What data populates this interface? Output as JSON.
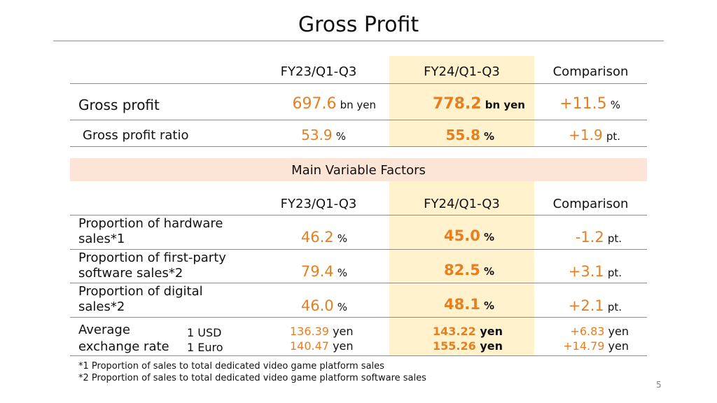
{
  "title": "Gross Profit",
  "top_table": {
    "headers": [
      "FY23/Q1-Q3",
      "FY24/Q1-Q3",
      "Comparison"
    ],
    "rows": [
      {
        "label": "Gross profit",
        "fy23": "697.6",
        "fy23_unit": "bn yen",
        "fy24": "778.2",
        "fy24_unit": "bn yen",
        "comp": "+11.5",
        "comp_unit": "%"
      },
      {
        "label": "Gross profit ratio",
        "fy23": "53.9",
        "fy23_unit": "%",
        "fy24": "55.8",
        "fy24_unit": "%",
        "comp": "+1.9",
        "comp_unit": "pt."
      }
    ]
  },
  "factors": {
    "title": "Main Variable Factors",
    "headers": [
      "FY23/Q1-Q3",
      "FY24/Q1-Q3",
      "Comparison"
    ],
    "rows": [
      {
        "label_line1": "Proportion of hardware",
        "label_line2": "sales*1",
        "fy23": "46.2",
        "fy23_unit": "%",
        "fy24": "45.0",
        "fy24_unit": "%",
        "comp": "-1.2",
        "comp_unit": "pt."
      },
      {
        "label_line1": "Proportion of first-party",
        "label_line2": "software sales*2",
        "fy23": "79.4",
        "fy23_unit": "%",
        "fy24": "82.5",
        "fy24_unit": "%",
        "comp": "+3.1",
        "comp_unit": "pt."
      },
      {
        "label_line1": "Proportion of digital",
        "label_line2": "sales*2",
        "fy23": "46.0",
        "fy23_unit": "%",
        "fy24": "48.1",
        "fy24_unit": "%",
        "comp": "+2.1",
        "comp_unit": "pt."
      }
    ],
    "exchange": {
      "label_line1": "Average",
      "label_line2": "exchange rate",
      "usd_label": "1 USD",
      "euro_label": "1 Euro",
      "fy23_usd": "136.39",
      "fy23_euro": "140.47",
      "fy24_usd": "143.22",
      "fy24_euro": "155.26",
      "comp_usd": "+6.83",
      "comp_euro": "+14.79",
      "unit": "yen"
    }
  },
  "notes": [
    "*1 Proportion of sales to total dedicated video game platform sales",
    "*2 Proportion of sales to total dedicated video game platform software sales"
  ],
  "page_number": "5",
  "colors": {
    "accent_orange": "#e67e22",
    "highlight_column": "#fff2cc",
    "factors_band": "#fce4d6"
  }
}
